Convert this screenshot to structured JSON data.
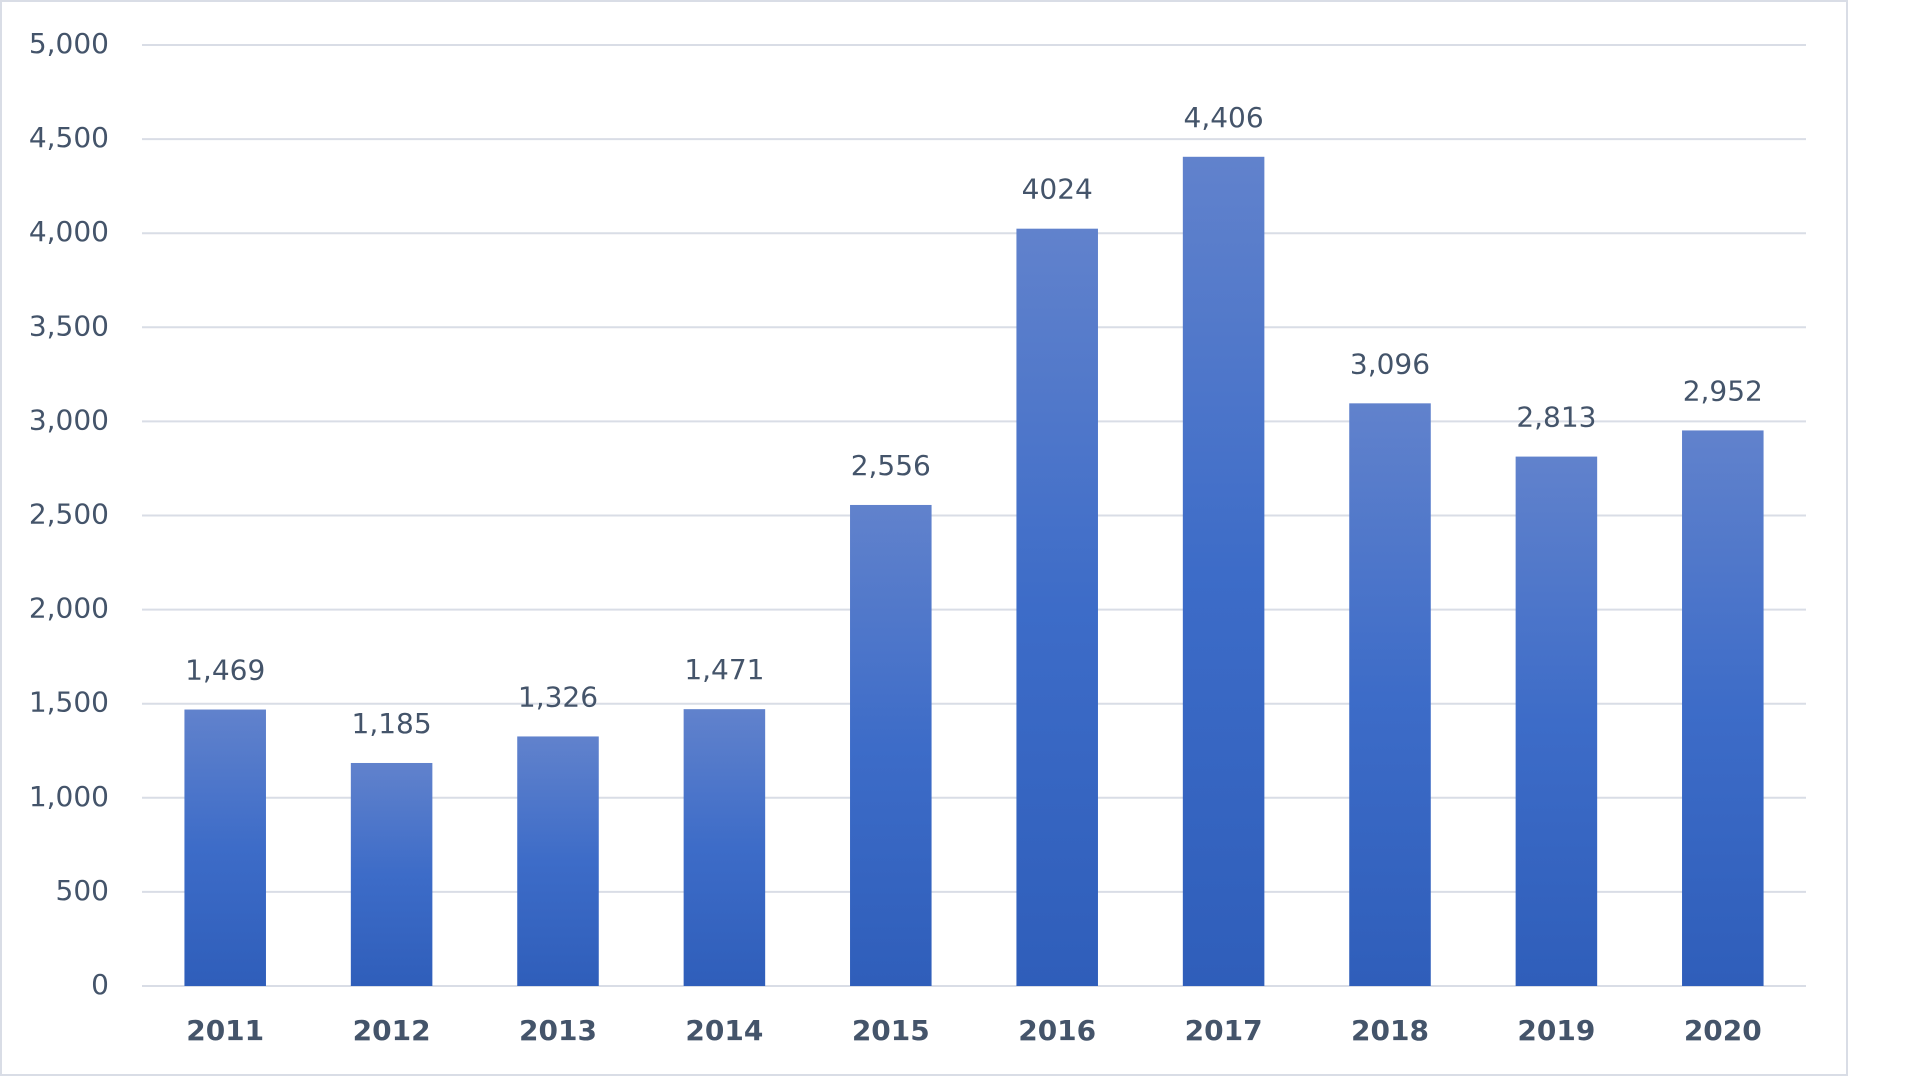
{
  "chart_data": {
    "type": "bar",
    "categories": [
      "2011",
      "2012",
      "2013",
      "2014",
      "2015",
      "2016",
      "2017",
      "2018",
      "2019",
      "2020"
    ],
    "values": [
      1469,
      1185,
      1326,
      1471,
      2556,
      4024,
      4406,
      3096,
      2813,
      2952
    ],
    "value_labels": [
      "1,469",
      "1,185",
      "1,326",
      "1,471",
      "2,556",
      "4024",
      "4,406",
      "3,096",
      "2,813",
      "2,952"
    ],
    "color": "#4472c4",
    "ylim": [
      0,
      5000
    ],
    "yticks": [
      0,
      500,
      {
        "value": 1000,
        "label": "1,000"
      },
      {
        "value": 1500,
        "label": "1,500"
      },
      {
        "value": 2000,
        "label": "2,000"
      },
      {
        "value": 2500,
        "label": "2,500"
      },
      {
        "value": 3000,
        "label": "3,000"
      },
      {
        "value": 3500,
        "label": "3,500"
      },
      {
        "value": 4000,
        "label": "4,000"
      },
      {
        "value": 4500,
        "label": "4,500"
      },
      {
        "value": 5000,
        "label": "5,000"
      }
    ],
    "grid": true
  }
}
